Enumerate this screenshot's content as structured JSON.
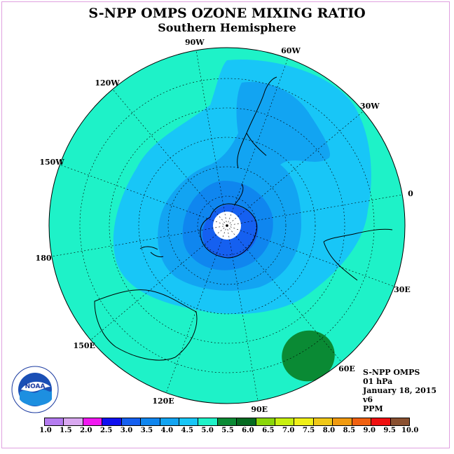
{
  "header": {
    "title": "S-NPP OMPS OZONE MIXING RATIO",
    "subtitle": "Southern Hemisphere"
  },
  "map": {
    "projection": "south polar stereographic",
    "longitude_labels": [
      "90W",
      "60W",
      "30W",
      "0",
      "30E",
      "60E",
      "90E",
      "120E",
      "150E",
      "180",
      "150W",
      "120W"
    ],
    "colors": {
      "outer": "#1ef2c8",
      "band_4_5": "#18c6f7",
      "band_4_0": "#12a4f2",
      "band_3_5": "#0f86ef",
      "band_3_0": "#1560f0",
      "high": "#0a8a34",
      "pole": "#ffffff",
      "coast": "#000000"
    }
  },
  "info": {
    "lines": [
      "S-NPP OMPS",
      "01 hPa",
      "January 18, 2015",
      "v6",
      "PPM"
    ]
  },
  "legend": {
    "ticks": [
      "1.0",
      "1.5",
      "2.0",
      "2.5",
      "3.0",
      "3.5",
      "4.0",
      "4.5",
      "5.0",
      "5.5",
      "6.0",
      "6.5",
      "7.0",
      "7.5",
      "8.0",
      "8.5",
      "9.0",
      "9.5",
      "10.0"
    ],
    "colors": [
      "#b57cf0",
      "#d9a8f0",
      "#f018f0",
      "#1010f0",
      "#1560f0",
      "#0f86ef",
      "#12a4f2",
      "#18c6f7",
      "#1ef2c8",
      "#0a8a34",
      "#056a20",
      "#8ad60a",
      "#c8f010",
      "#f0f018",
      "#f0c818",
      "#f09a10",
      "#f06010",
      "#f01010",
      "#8a5030"
    ]
  },
  "logo": {
    "text": "NOAA",
    "ring_text": "NATIONAL OCEANIC AND ATMOSPHERIC ADMINISTRATION · U.S. DEPARTMENT OF COMMERCE"
  }
}
